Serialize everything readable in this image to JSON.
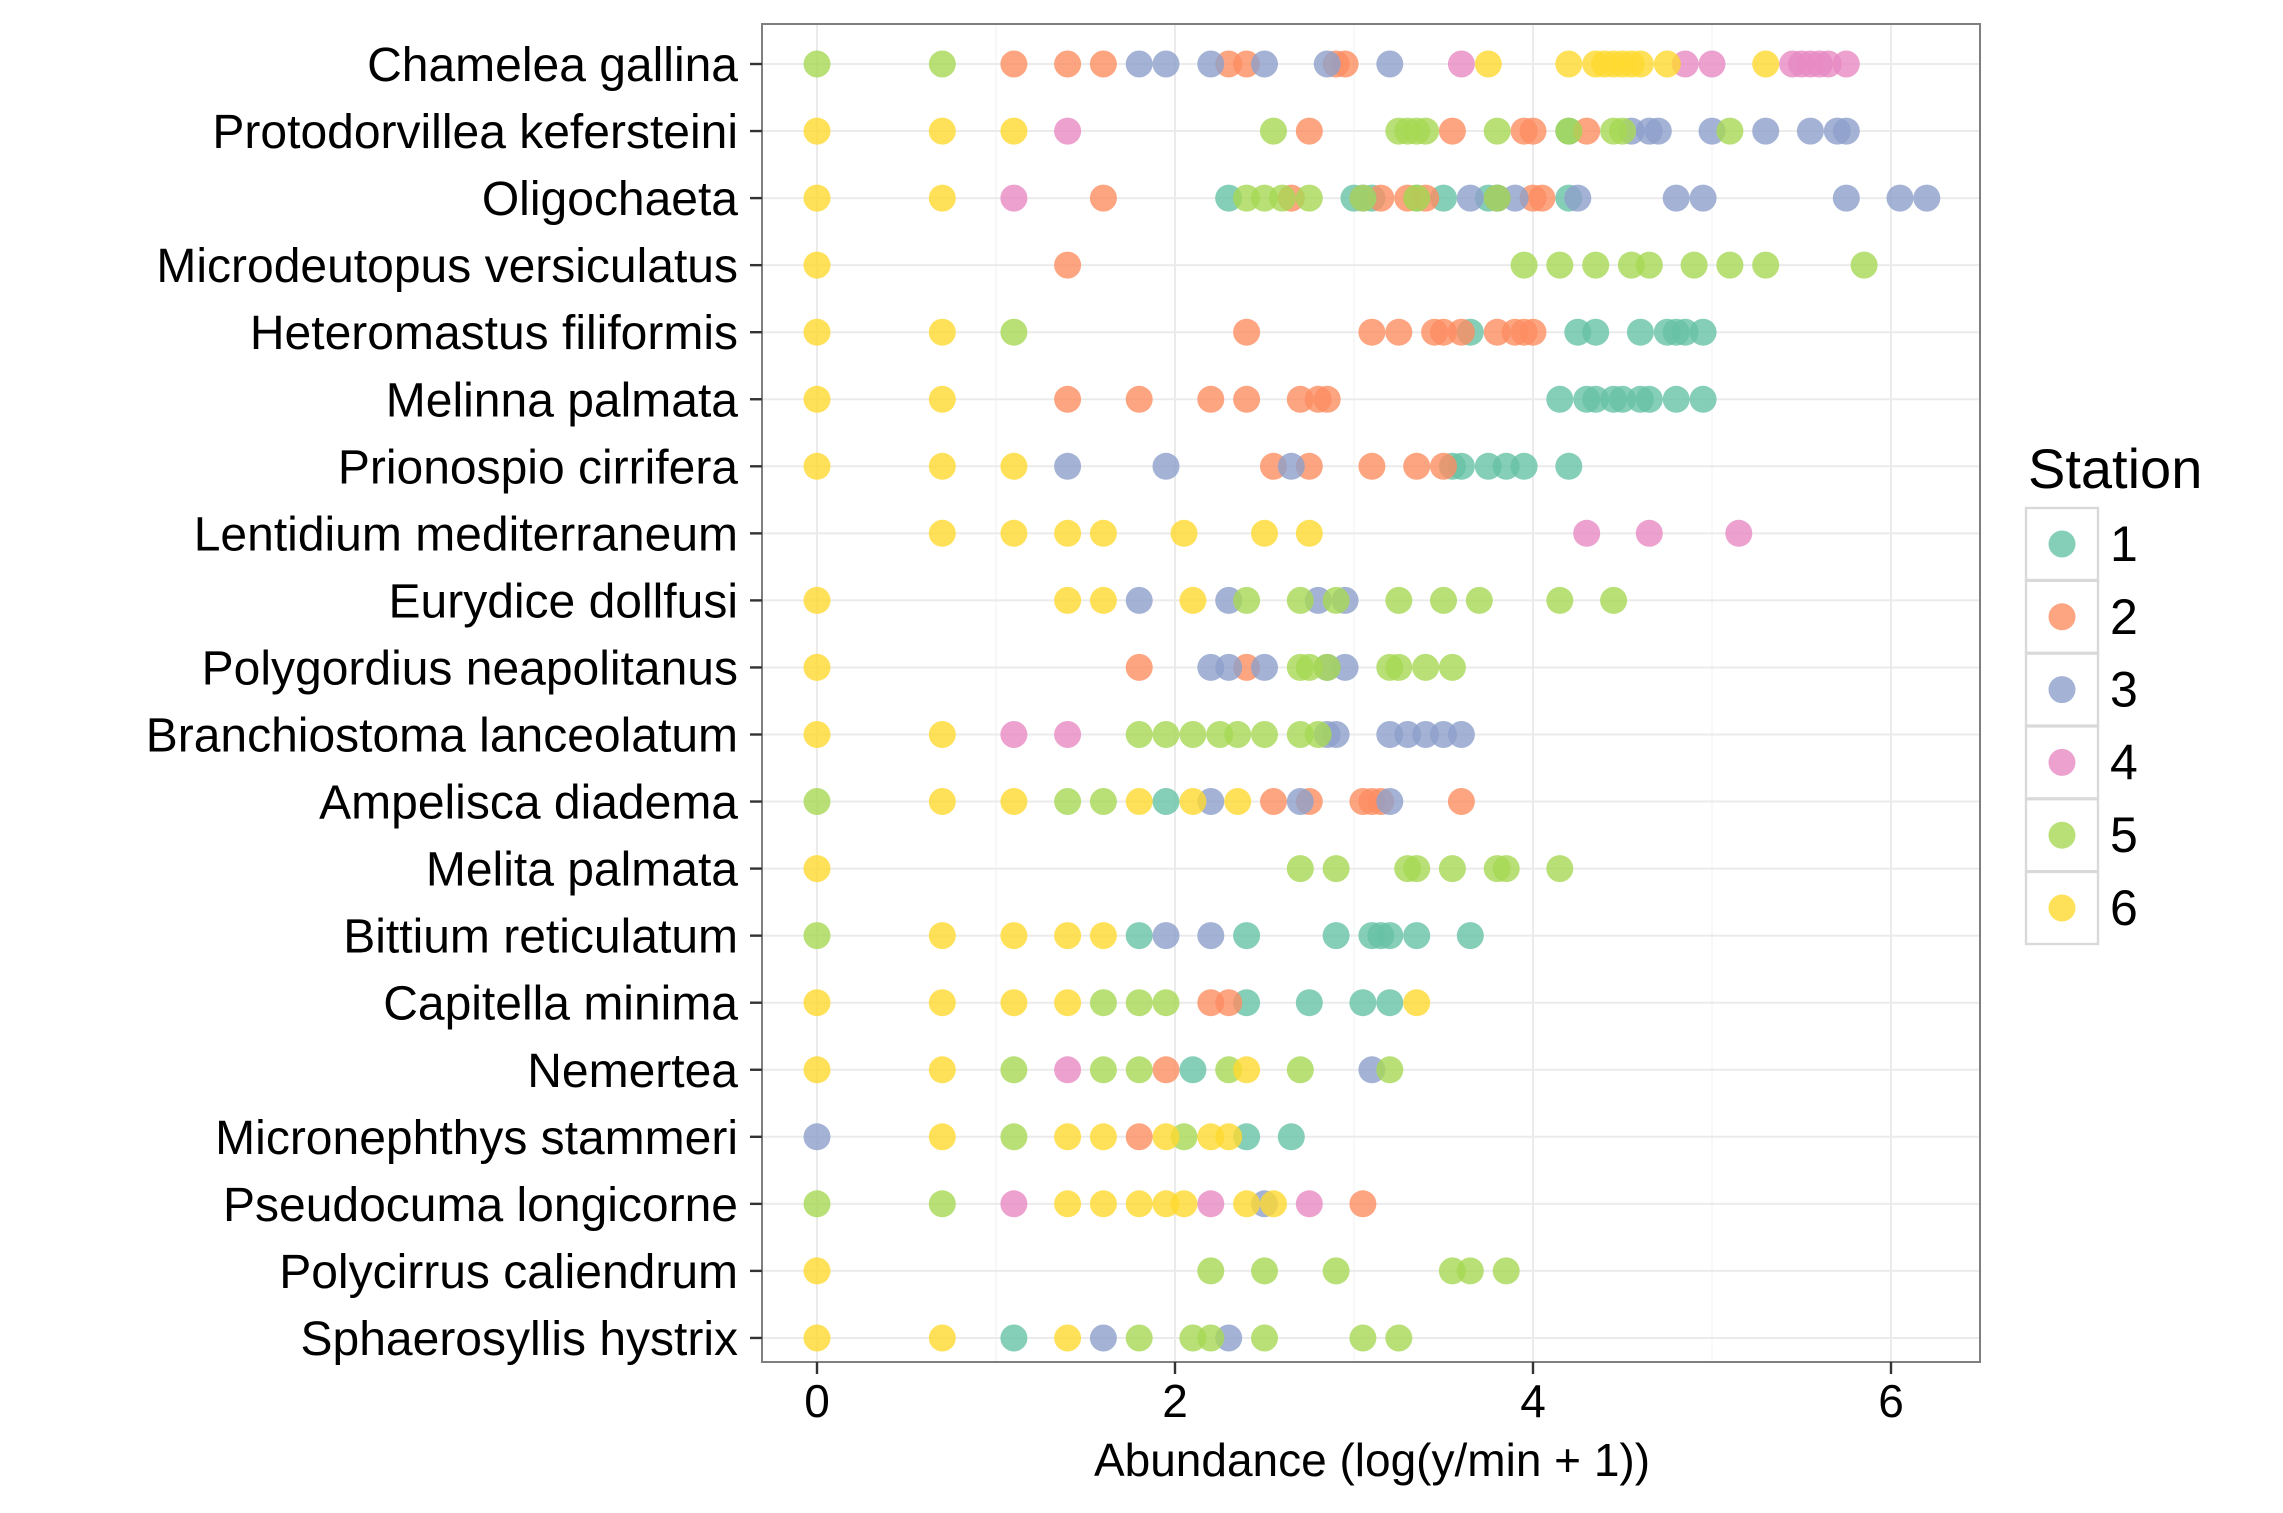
{
  "chart_data": {
    "type": "scatter",
    "xlabel": "Abundance (log(y/min + 1))",
    "ylabel": "",
    "xlim": [
      -0.3,
      6.5
    ],
    "xticks": [
      0,
      2,
      4,
      6
    ],
    "grid": true,
    "legend": {
      "title": "Station",
      "position": "right",
      "entries": [
        {
          "label": "1",
          "color": "#66c2a5"
        },
        {
          "label": "2",
          "color": "#fc8d62"
        },
        {
          "label": "3",
          "color": "#8da0cb"
        },
        {
          "label": "4",
          "color": "#e78ac3"
        },
        {
          "label": "5",
          "color": "#a6d854"
        },
        {
          "label": "6",
          "color": "#ffd92f"
        }
      ]
    },
    "categories": [
      "Chamelea gallina",
      "Protodorvillea kefersteini",
      "Oligochaeta",
      "Microdeutopus versiculatus",
      "Heteromastus filiformis",
      "Melinna palmata",
      "Prionospio cirrifera",
      "Lentidium mediterraneum",
      "Eurydice dollfusi",
      "Polygordius neapolitanus",
      "Branchiostoma lanceolatum",
      "Ampelisca diadema",
      "Melita palmata",
      "Bittium reticulatum",
      "Capitella minima",
      "Nemertea",
      "Micronephthys stammeri",
      "Pseudocuma longicorne",
      "Polycirrus caliendrum",
      "Sphaerosyllis hystrix"
    ],
    "series": [
      {
        "name": "1",
        "points": [
          {
            "category": "Protodorvillea kefersteini",
            "x": [
              4.2
            ]
          },
          {
            "category": "Oligochaeta",
            "x": [
              2.3,
              3.0,
              3.1,
              3.35,
              3.5,
              3.75,
              3.8,
              4.2
            ]
          },
          {
            "category": "Heteromastus filiformis",
            "x": [
              3.65,
              4.25,
              4.35,
              4.6,
              4.75,
              4.8,
              4.85,
              4.95
            ]
          },
          {
            "category": "Melinna palmata",
            "x": [
              4.15,
              4.3,
              4.35,
              4.45,
              4.5,
              4.6,
              4.65,
              4.8,
              4.95
            ]
          },
          {
            "category": "Prionospio cirrifera",
            "x": [
              3.55,
              3.6,
              3.75,
              3.85,
              3.95,
              4.2
            ]
          },
          {
            "category": "Ampelisca diadema",
            "x": [
              1.95
            ]
          },
          {
            "category": "Bittium reticulatum",
            "x": [
              1.8,
              2.4,
              2.9,
              3.1,
              3.15,
              3.2,
              3.35,
              3.65
            ]
          },
          {
            "category": "Capitella minima",
            "x": [
              2.4,
              2.75,
              3.05,
              3.2
            ]
          },
          {
            "category": "Nemertea",
            "x": [
              2.1
            ]
          },
          {
            "category": "Micronephthys stammeri",
            "x": [
              2.4,
              2.65
            ]
          },
          {
            "category": "Sphaerosyllis hystrix",
            "x": [
              1.1
            ]
          }
        ]
      },
      {
        "name": "2",
        "points": [
          {
            "category": "Chamelea gallina",
            "x": [
              1.1,
              1.4,
              1.6,
              2.3,
              2.4,
              2.9,
              2.95
            ]
          },
          {
            "category": "Protodorvillea kefersteini",
            "x": [
              2.75,
              3.55,
              3.95,
              4.0,
              4.3
            ]
          },
          {
            "category": "Oligochaeta",
            "x": [
              1.6,
              2.65,
              3.15,
              3.3,
              3.4,
              4.0,
              4.05
            ]
          },
          {
            "category": "Microdeutopus versiculatus",
            "x": [
              1.4
            ]
          },
          {
            "category": "Heteromastus filiformis",
            "x": [
              2.4,
              3.1,
              3.25,
              3.45,
              3.5,
              3.6,
              3.8,
              3.9,
              3.95,
              4.0
            ]
          },
          {
            "category": "Melinna palmata",
            "x": [
              1.4,
              1.8,
              2.2,
              2.4,
              2.7,
              2.8,
              2.85
            ]
          },
          {
            "category": "Prionospio cirrifera",
            "x": [
              2.55,
              2.75,
              3.1,
              3.35,
              3.5
            ]
          },
          {
            "category": "Polygordius neapolitanus",
            "x": [
              1.8,
              2.4
            ]
          },
          {
            "category": "Ampelisca diadema",
            "x": [
              2.55,
              2.75,
              3.05,
              3.1,
              3.15,
              3.6
            ]
          },
          {
            "category": "Capitella minima",
            "x": [
              2.2,
              2.3
            ]
          },
          {
            "category": "Nemertea",
            "x": [
              1.95
            ]
          },
          {
            "category": "Micronephthys stammeri",
            "x": [
              1.8
            ]
          },
          {
            "category": "Pseudocuma longicorne",
            "x": [
              3.05
            ]
          }
        ]
      },
      {
        "name": "3",
        "points": [
          {
            "category": "Chamelea gallina",
            "x": [
              1.8,
              1.95,
              2.2,
              2.5,
              2.85,
              3.2
            ]
          },
          {
            "category": "Protodorvillea kefersteini",
            "x": [
              4.55,
              4.65,
              4.7,
              5.0,
              5.3,
              5.55,
              5.7,
              5.75
            ]
          },
          {
            "category": "Oligochaeta",
            "x": [
              3.05,
              3.65,
              3.8,
              3.9,
              4.25,
              4.8,
              4.95,
              5.75,
              6.05,
              6.2
            ]
          },
          {
            "category": "Prionospio cirrifera",
            "x": [
              1.4,
              1.95,
              2.65
            ]
          },
          {
            "category": "Eurydice dollfusi",
            "x": [
              1.8,
              2.3,
              2.8,
              2.95
            ]
          },
          {
            "category": "Polygordius neapolitanus",
            "x": [
              2.2,
              2.3,
              2.5,
              2.85,
              2.95
            ]
          },
          {
            "category": "Branchiostoma lanceolatum",
            "x": [
              2.85,
              2.9,
              3.2,
              3.3,
              3.4,
              3.5,
              3.6
            ]
          },
          {
            "category": "Ampelisca diadema",
            "x": [
              2.2,
              2.7,
              3.2
            ]
          },
          {
            "category": "Bittium reticulatum",
            "x": [
              1.95,
              2.2
            ]
          },
          {
            "category": "Nemertea",
            "x": [
              3.1
            ]
          },
          {
            "category": "Micronephthys stammeri",
            "x": [
              0
            ]
          },
          {
            "category": "Pseudocuma longicorne",
            "x": [
              2.5
            ]
          },
          {
            "category": "Sphaerosyllis hystrix",
            "x": [
              1.6,
              2.3
            ]
          }
        ]
      },
      {
        "name": "4",
        "points": [
          {
            "category": "Chamelea gallina",
            "x": [
              3.6,
              4.85,
              5.0,
              5.45,
              5.5,
              5.55,
              5.6,
              5.65,
              5.75
            ]
          },
          {
            "category": "Protodorvillea kefersteini",
            "x": [
              1.4
            ]
          },
          {
            "category": "Oligochaeta",
            "x": [
              1.1
            ]
          },
          {
            "category": "Lentidium mediterraneum",
            "x": [
              4.3,
              4.65,
              5.15
            ]
          },
          {
            "category": "Branchiostoma lanceolatum",
            "x": [
              1.1,
              1.4
            ]
          },
          {
            "category": "Nemertea",
            "x": [
              1.4
            ]
          },
          {
            "category": "Pseudocuma longicorne",
            "x": [
              1.1,
              2.2,
              2.75
            ]
          }
        ]
      },
      {
        "name": "5",
        "points": [
          {
            "category": "Chamelea gallina",
            "x": [
              0,
              0.7
            ]
          },
          {
            "category": "Protodorvillea kefersteini",
            "x": [
              2.55,
              3.25,
              3.3,
              3.35,
              3.4,
              3.8,
              4.2,
              4.45,
              4.5,
              5.1
            ]
          },
          {
            "category": "Oligochaeta",
            "x": [
              2.4,
              2.5,
              2.6,
              2.75,
              3.05,
              3.35,
              3.8
            ]
          },
          {
            "category": "Microdeutopus versiculatus",
            "x": [
              3.95,
              4.15,
              4.35,
              4.55,
              4.65,
              4.9,
              5.1,
              5.3,
              5.85
            ]
          },
          {
            "category": "Heteromastus filiformis",
            "x": [
              1.1
            ]
          },
          {
            "category": "Eurydice dollfusi",
            "x": [
              2.4,
              2.7,
              2.9,
              3.25,
              3.5,
              3.7,
              4.15,
              4.45
            ]
          },
          {
            "category": "Polygordius neapolitanus",
            "x": [
              2.7,
              2.75,
              2.85,
              3.2,
              3.25,
              3.4,
              3.55
            ]
          },
          {
            "category": "Branchiostoma lanceolatum",
            "x": [
              1.8,
              1.95,
              2.1,
              2.25,
              2.35,
              2.5,
              2.7,
              2.8
            ]
          },
          {
            "category": "Ampelisca diadema",
            "x": [
              0,
              1.4,
              1.6
            ]
          },
          {
            "category": "Melita palmata",
            "x": [
              2.7,
              2.9,
              3.3,
              3.35,
              3.55,
              3.8,
              3.85,
              4.15
            ]
          },
          {
            "category": "Bittium reticulatum",
            "x": [
              0
            ]
          },
          {
            "category": "Capitella minima",
            "x": [
              1.6,
              1.8,
              1.95
            ]
          },
          {
            "category": "Nemertea",
            "x": [
              1.1,
              1.6,
              1.8,
              2.3,
              2.7,
              3.2
            ]
          },
          {
            "category": "Micronephthys stammeri",
            "x": [
              1.1,
              2.05
            ]
          },
          {
            "category": "Pseudocuma longicorne",
            "x": [
              0,
              0.7
            ]
          },
          {
            "category": "Polycirrus caliendrum",
            "x": [
              2.2,
              2.5,
              2.9,
              3.55,
              3.65,
              3.85
            ]
          },
          {
            "category": "Sphaerosyllis hystrix",
            "x": [
              1.8,
              2.1,
              2.2,
              2.5,
              3.05,
              3.25
            ]
          }
        ]
      },
      {
        "name": "6",
        "points": [
          {
            "category": "Chamelea gallina",
            "x": [
              3.75,
              4.2,
              4.35,
              4.4,
              4.45,
              4.5,
              4.55,
              4.6,
              4.75,
              5.3
            ]
          },
          {
            "category": "Protodorvillea kefersteini",
            "x": [
              0,
              0.7,
              1.1
            ]
          },
          {
            "category": "Oligochaeta",
            "x": [
              0,
              0.7
            ]
          },
          {
            "category": "Microdeutopus versiculatus",
            "x": [
              0
            ]
          },
          {
            "category": "Heteromastus filiformis",
            "x": [
              0,
              0.7
            ]
          },
          {
            "category": "Melinna palmata",
            "x": [
              0,
              0.7
            ]
          },
          {
            "category": "Prionospio cirrifera",
            "x": [
              0,
              0.7,
              1.1
            ]
          },
          {
            "category": "Lentidium mediterraneum",
            "x": [
              0.7,
              1.1,
              1.4,
              1.6,
              2.05,
              2.5,
              2.75
            ]
          },
          {
            "category": "Eurydice dollfusi",
            "x": [
              0,
              1.4,
              1.6,
              2.1
            ]
          },
          {
            "category": "Polygordius neapolitanus",
            "x": [
              0
            ]
          },
          {
            "category": "Branchiostoma lanceolatum",
            "x": [
              0,
              0.7
            ]
          },
          {
            "category": "Ampelisca diadema",
            "x": [
              0.7,
              1.1,
              1.8,
              2.1,
              2.35
            ]
          },
          {
            "category": "Melita palmata",
            "x": [
              0
            ]
          },
          {
            "category": "Bittium reticulatum",
            "x": [
              0.7,
              1.1,
              1.4,
              1.6
            ]
          },
          {
            "category": "Capitella minima",
            "x": [
              0,
              0.7,
              1.1,
              1.4,
              3.35
            ]
          },
          {
            "category": "Nemertea",
            "x": [
              0,
              0.7,
              2.4
            ]
          },
          {
            "category": "Micronephthys stammeri",
            "x": [
              0.7,
              1.4,
              1.6,
              1.95,
              2.2,
              2.3
            ]
          },
          {
            "category": "Pseudocuma longicorne",
            "x": [
              1.4,
              1.6,
              1.8,
              1.95,
              2.05,
              2.4,
              2.55
            ]
          },
          {
            "category": "Polycirrus caliendrum",
            "x": [
              0
            ]
          },
          {
            "category": "Sphaerosyllis hystrix",
            "x": [
              0,
              0.7,
              1.4
            ]
          }
        ]
      }
    ]
  }
}
